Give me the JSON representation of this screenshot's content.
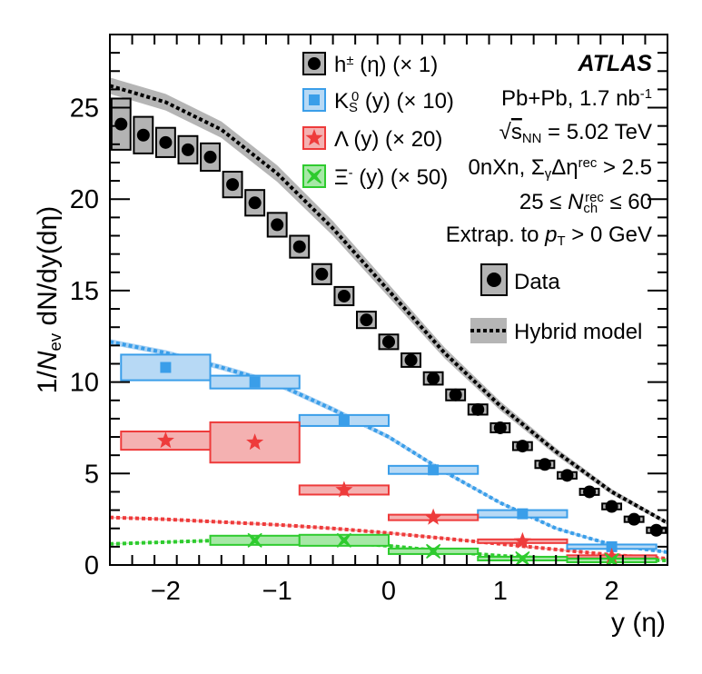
{
  "chart_data": {
    "type": "scatter",
    "experiment": "ATLAS",
    "xlabel": "y (η)",
    "ylabel": "1/N_ev dN/dy(dη)",
    "xlim": [
      -2.5,
      2.5
    ],
    "ylim": [
      0,
      29
    ],
    "x_ticks": [
      -2,
      -1,
      0,
      1,
      2
    ],
    "y_ticks": [
      0,
      5,
      10,
      15,
      20,
      25
    ],
    "info_lines": [
      "Pb+Pb, 1.7 nb⁻¹",
      "√s_NN = 5.02 TeV",
      "0nXn, Σ_γΔη^rec > 2.5",
      "25 ≤ N_ch^rec ≤ 60",
      "Extrap. to p_T > 0 GeV"
    ],
    "legend_style": [
      {
        "label": "Data",
        "marker": "box-circle"
      },
      {
        "label": "Hybrid model",
        "marker": "dotted-band"
      }
    ],
    "series": [
      {
        "name": "h± (η) (× 1)",
        "color": "#000000",
        "box_fill": "#b3b3b3",
        "band_fill": "#b5b5b5",
        "marker": "circle",
        "x": [
          -2.4,
          -2.2,
          -2.0,
          -1.8,
          -1.6,
          -1.4,
          -1.2,
          -1.0,
          -0.8,
          -0.6,
          -0.4,
          -0.2,
          0.0,
          0.2,
          0.4,
          0.6,
          0.8,
          1.0,
          1.2,
          1.4,
          1.6,
          1.8,
          2.0,
          2.2,
          2.4
        ],
        "y": [
          24.1,
          23.5,
          23.1,
          22.7,
          22.3,
          20.8,
          19.8,
          18.6,
          17.4,
          15.9,
          14.7,
          13.4,
          12.2,
          11.2,
          10.2,
          9.3,
          8.5,
          7.5,
          6.5,
          5.5,
          4.9,
          4.0,
          3.2,
          2.5,
          1.9
        ],
        "syst": [
          1.4,
          1.0,
          0.8,
          0.75,
          0.75,
          0.7,
          0.7,
          0.65,
          0.6,
          0.55,
          0.5,
          0.45,
          0.4,
          0.37,
          0.34,
          0.3,
          0.28,
          0.25,
          0.22,
          0.2,
          0.18,
          0.17,
          0.16,
          0.15,
          0.15
        ],
        "model": {
          "x": [
            -2.5,
            -2.0,
            -1.5,
            -1.0,
            -0.5,
            0.0,
            0.5,
            1.0,
            1.5,
            2.0,
            2.5
          ],
          "y": [
            26.2,
            25.3,
            23.8,
            21.4,
            18.4,
            15.0,
            11.6,
            8.7,
            6.2,
            4.0,
            2.3
          ],
          "band": [
            0.45,
            0.45,
            0.45,
            0.45,
            0.4,
            0.35,
            0.3,
            0.25,
            0.2,
            0.15,
            0.1
          ]
        }
      },
      {
        "name": "K_S^0 (y) (× 10)",
        "color": "#3a9ee9",
        "box_fill": "#b7d9f5",
        "band_fill": "#a9d2f4",
        "marker": "square",
        "x": [
          -2.0,
          -1.2,
          -0.4,
          0.4,
          1.2,
          2.0
        ],
        "xerr": [
          0.4,
          0.4,
          0.4,
          0.4,
          0.4,
          0.4
        ],
        "y": [
          10.8,
          10.0,
          7.9,
          5.2,
          2.8,
          1.0
        ],
        "syst": [
          0.7,
          0.35,
          0.3,
          0.22,
          0.2,
          0.12
        ],
        "model": {
          "x": [
            -2.5,
            -2.0,
            -1.5,
            -1.0,
            -0.5,
            0.0,
            0.5,
            1.0,
            1.5,
            2.0,
            2.5
          ],
          "y": [
            12.2,
            11.6,
            10.8,
            9.9,
            8.5,
            7.0,
            5.1,
            3.4,
            2.0,
            1.1,
            0.7
          ],
          "band": [
            0.15,
            0.15,
            0.15,
            0.15,
            0.15,
            0.12,
            0.1,
            0.08,
            0.07,
            0.06,
            0.05
          ]
        }
      },
      {
        "name": "Λ (y) (× 20)",
        "color": "#ee3b3b",
        "box_fill": "#f4b1b1",
        "band_fill": "#f7b9b9",
        "marker": "star",
        "x": [
          -2.0,
          -1.2,
          -0.4,
          0.4,
          1.2,
          2.0
        ],
        "xerr": [
          0.4,
          0.4,
          0.4,
          0.4,
          0.4,
          0.4
        ],
        "y": [
          6.8,
          6.7,
          4.1,
          2.6,
          1.3,
          0.45
        ],
        "syst": [
          0.5,
          1.1,
          0.25,
          0.15,
          0.1,
          0.08
        ],
        "model": {
          "x": [
            -2.5,
            -2.0,
            -1.5,
            -1.0,
            -0.5,
            0.0,
            0.5,
            1.0,
            1.5,
            2.0,
            2.5
          ],
          "y": [
            2.6,
            2.5,
            2.35,
            2.2,
            2.0,
            1.75,
            1.45,
            1.15,
            0.85,
            0.55,
            0.35
          ],
          "band": [
            0.05,
            0.05,
            0.05,
            0.05,
            0.05,
            0.05,
            0.05,
            0.04,
            0.04,
            0.03,
            0.03
          ]
        }
      },
      {
        "name": "Ξ⁻ (y) (× 50)",
        "color": "#2ecb2e",
        "box_fill": "#a6e8a6",
        "band_fill": "#bff0bf",
        "marker": "cross-star",
        "x": [
          -1.2,
          -0.4,
          0.4,
          1.2,
          2.0
        ],
        "xerr": [
          0.4,
          0.4,
          0.4,
          0.4,
          0.4
        ],
        "y": [
          1.35,
          1.35,
          0.75,
          0.35,
          0.25
        ],
        "syst": [
          0.25,
          0.3,
          0.15,
          0.1,
          0.1
        ],
        "model": {
          "x": [
            -2.5,
            -2.0,
            -1.5,
            -1.0,
            -0.5,
            0.0,
            0.5,
            1.0,
            1.5,
            2.0,
            2.5
          ],
          "y": [
            1.15,
            1.25,
            1.35,
            1.35,
            1.25,
            1.05,
            0.75,
            0.5,
            0.35,
            0.3,
            0.25
          ],
          "band": [
            0.04,
            0.04,
            0.04,
            0.04,
            0.04,
            0.04,
            0.03,
            0.03,
            0.03,
            0.03,
            0.03
          ]
        }
      }
    ]
  }
}
